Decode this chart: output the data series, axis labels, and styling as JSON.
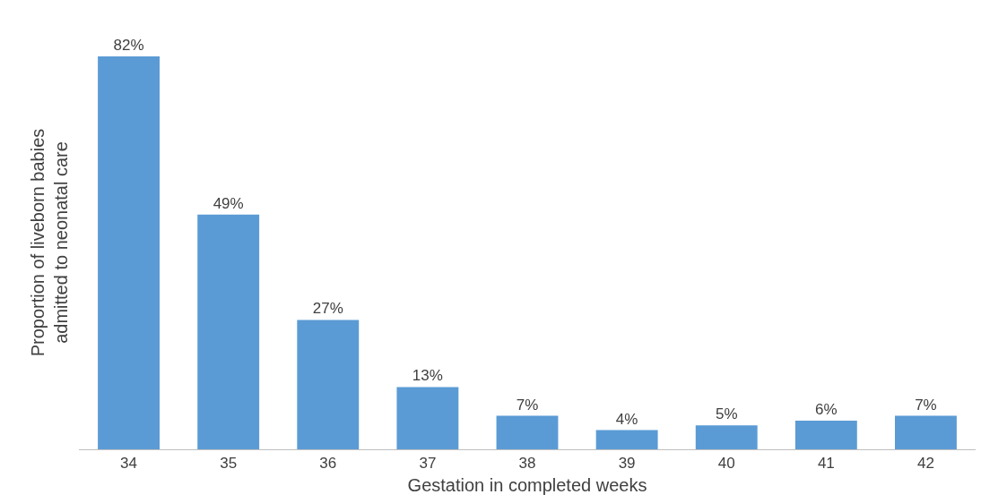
{
  "chart_data": {
    "type": "bar",
    "xlabel": "Gestation in completed weeks",
    "ylabel": "Proportion of liveborn babies\nadmitted to neonatal care",
    "categories": [
      "34",
      "35",
      "36",
      "37",
      "38",
      "39",
      "40",
      "41",
      "42"
    ],
    "values": [
      82,
      49,
      27,
      13,
      7,
      4,
      5,
      6,
      7
    ],
    "value_labels": [
      "82%",
      "49%",
      "27%",
      "13%",
      "7%",
      "4%",
      "5%",
      "6%",
      "7%"
    ],
    "color": "#5b9bd5",
    "grid": false,
    "legend": false
  }
}
